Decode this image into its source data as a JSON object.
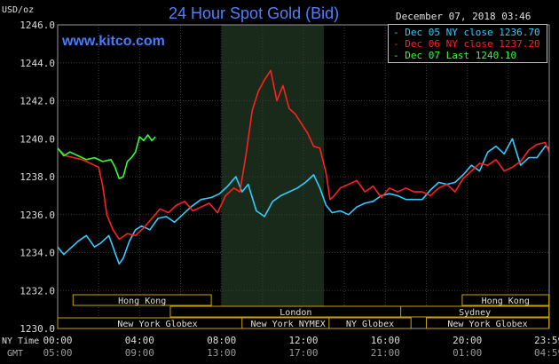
{
  "header": {
    "title": "24 Hour Spot Gold (Bid)",
    "unit": "USD/oz",
    "date": "December 07, 2018 03:46",
    "site": "www.kitco.com"
  },
  "legend": {
    "items": [
      {
        "label": "Dec 05 NY close 1236.70",
        "color": "#33ccff"
      },
      {
        "label": "Dec 06 NY close 1237.20",
        "color": "#ff2020"
      },
      {
        "label": "Dec 07 Last 1240.10",
        "color": "#33ff33"
      }
    ]
  },
  "markets": [
    {
      "name": "Hong Kong",
      "start": "00:45",
      "end": "07:30"
    },
    {
      "name": "London",
      "start": "05:30",
      "end": "17:45"
    },
    {
      "name": "New York Globex",
      "start": "00:00",
      "end": "09:45"
    },
    {
      "name": "New York NYMEX",
      "start": "09:00",
      "end": "13:30"
    },
    {
      "name": "NY Globex",
      "start": "13:15",
      "end": "17:15"
    },
    {
      "name": "Sydney",
      "start": "16:45",
      "end": "23:59"
    },
    {
      "name": "New York Globex",
      "start": "18:00",
      "end": "23:59"
    },
    {
      "name": "Hong Kong",
      "start": "19:45",
      "end": "23:59"
    }
  ],
  "axis_labels": {
    "ny_time": "NY Time",
    "gmt": "GMT"
  },
  "chart_data": {
    "type": "line",
    "title": "24 Hour Spot Gold (Bid)",
    "ylabel": "USD/oz",
    "xlim_hours": [
      0,
      24
    ],
    "ylim": [
      1230.0,
      1246.0
    ],
    "y_ticks": [
      "1230.0",
      "1232.0",
      "1234.0",
      "1236.0",
      "1238.0",
      "1240.0",
      "1242.0",
      "1244.0",
      "1246.0"
    ],
    "x_ticks_ny": [
      "00:00",
      "04:00",
      "08:00",
      "12:00",
      "16:00",
      "20:00",
      "23:59"
    ],
    "x_ticks_gmt": [
      "05:00",
      "09:00",
      "13:00",
      "17:00",
      "21:00",
      "01:00",
      "04:59"
    ],
    "shaded_region_hours": [
      8.0,
      13.0
    ],
    "grid": true,
    "series": [
      {
        "name": "Dec 05 NY close 1236.70",
        "color": "#33ccff",
        "x": [
          0,
          0.3,
          0.6,
          1.0,
          1.4,
          1.8,
          2.1,
          2.5,
          2.8,
          3.0,
          3.2,
          3.5,
          3.8,
          4.1,
          4.5,
          4.9,
          5.3,
          5.7,
          6.1,
          6.5,
          7.0,
          7.5,
          7.9,
          8.3,
          8.7,
          9.0,
          9.3,
          9.7,
          10.1,
          10.5,
          10.9,
          11.3,
          11.7,
          12.1,
          12.5,
          12.8,
          13.1,
          13.4,
          13.8,
          14.2,
          14.6,
          15.0,
          15.4,
          15.8,
          16.2,
          16.6,
          17.0,
          17.4,
          17.8,
          18.2,
          18.6,
          19.0,
          19.4,
          19.8,
          20.2,
          20.6,
          21.0,
          21.4,
          21.8,
          22.2,
          22.6,
          23.0,
          23.4,
          23.8,
          23.99
        ],
        "y": [
          1234.3,
          1233.9,
          1234.2,
          1234.6,
          1234.9,
          1234.3,
          1234.5,
          1234.9,
          1234.0,
          1233.4,
          1233.7,
          1234.6,
          1235.2,
          1235.4,
          1235.2,
          1235.8,
          1235.9,
          1235.6,
          1236.0,
          1236.4,
          1236.8,
          1236.9,
          1237.1,
          1237.5,
          1238.0,
          1237.2,
          1237.6,
          1236.2,
          1235.9,
          1236.7,
          1237.0,
          1237.2,
          1237.4,
          1237.7,
          1238.1,
          1237.4,
          1236.5,
          1236.1,
          1236.2,
          1236.0,
          1236.4,
          1236.6,
          1236.7,
          1237.0,
          1237.1,
          1237.0,
          1236.8,
          1236.8,
          1236.8,
          1237.3,
          1237.7,
          1237.6,
          1237.7,
          1238.1,
          1238.6,
          1238.3,
          1239.3,
          1239.6,
          1239.2,
          1240.0,
          1238.6,
          1239.0,
          1239.0,
          1239.6,
          1239.5
        ]
      },
      {
        "name": "Dec 06 NY close 1237.20",
        "color": "#ff2020",
        "x": [
          0,
          0.4,
          0.8,
          1.2,
          1.6,
          2.0,
          2.2,
          2.4,
          2.7,
          3.0,
          3.4,
          3.8,
          4.2,
          4.6,
          5.0,
          5.4,
          5.8,
          6.2,
          6.6,
          7.0,
          7.4,
          7.8,
          8.2,
          8.6,
          8.9,
          9.2,
          9.5,
          9.8,
          10.1,
          10.4,
          10.7,
          11.0,
          11.3,
          11.6,
          11.9,
          12.2,
          12.5,
          12.8,
          13.1,
          13.3,
          13.5,
          13.8,
          14.2,
          14.6,
          15.0,
          15.4,
          15.8,
          16.2,
          16.6,
          17.0,
          17.4,
          17.8,
          18.2,
          18.6,
          19.0,
          19.4,
          19.8,
          20.2,
          20.6,
          21.0,
          21.4,
          21.8,
          22.2,
          22.6,
          23.0,
          23.4,
          23.8,
          23.99
        ],
        "y": [
          1239.5,
          1239.1,
          1239.0,
          1238.9,
          1238.7,
          1238.5,
          1237.5,
          1236.0,
          1235.2,
          1234.7,
          1235.0,
          1234.9,
          1235.3,
          1235.8,
          1236.3,
          1236.1,
          1236.5,
          1236.7,
          1236.2,
          1236.4,
          1236.6,
          1236.1,
          1237.0,
          1237.4,
          1237.2,
          1239.2,
          1241.5,
          1242.5,
          1243.1,
          1243.6,
          1242.0,
          1242.8,
          1241.6,
          1241.3,
          1240.8,
          1240.3,
          1239.6,
          1239.5,
          1238.2,
          1236.8,
          1237.0,
          1237.4,
          1237.6,
          1237.8,
          1237.2,
          1237.5,
          1236.9,
          1237.4,
          1237.2,
          1237.4,
          1237.2,
          1237.2,
          1237.0,
          1237.4,
          1237.6,
          1237.2,
          1237.9,
          1238.3,
          1238.7,
          1238.6,
          1238.9,
          1238.3,
          1238.5,
          1238.8,
          1239.4,
          1239.7,
          1239.8,
          1239.3
        ]
      },
      {
        "name": "Dec 07 Last 1240.10",
        "color": "#33ff33",
        "x": [
          0,
          0.3,
          0.6,
          1.0,
          1.4,
          1.8,
          2.2,
          2.6,
          2.8,
          3.0,
          3.2,
          3.4,
          3.6,
          3.8,
          4.0,
          4.2,
          4.4,
          4.6,
          4.77
        ],
        "y": [
          1239.5,
          1239.1,
          1239.3,
          1239.1,
          1238.9,
          1239.0,
          1238.8,
          1238.9,
          1238.5,
          1237.9,
          1238.0,
          1238.8,
          1239.0,
          1239.3,
          1240.1,
          1239.9,
          1240.2,
          1239.9,
          1240.1
        ]
      }
    ]
  }
}
